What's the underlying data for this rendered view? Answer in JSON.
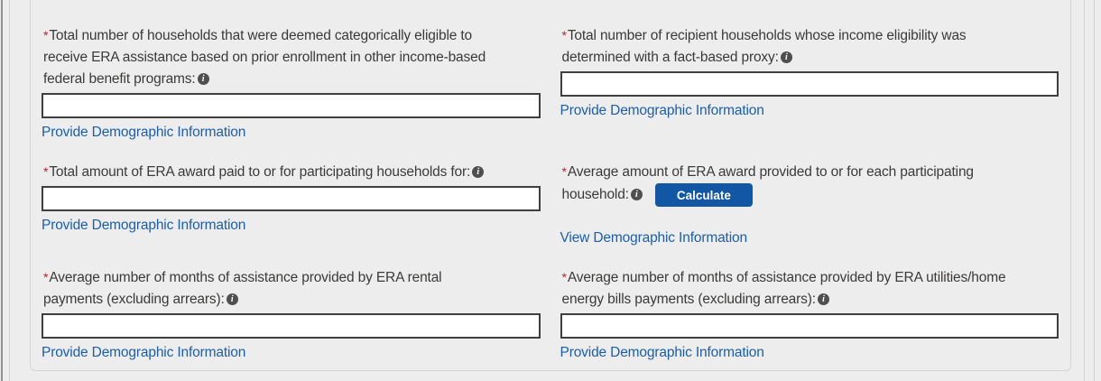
{
  "symbols": {
    "required": "*",
    "info_glyph": "i"
  },
  "colors": {
    "page_background": "#ededed",
    "panel_border": "#d5d5d5",
    "label_text": "#3b3a39",
    "required_asterisk": "#c21e25",
    "link_blue": "#1b5faa",
    "button_blue": "#1257a5",
    "button_text": "#ffffff",
    "input_border": "#3f3f3f",
    "info_icon_background": "#4f4f4f"
  },
  "fields": [
    {
      "name": "categorically-eligible-households",
      "label_lines": [
        "Total number of households that were deemed categorically eligible to",
        "receive ERA assistance based on prior enrollment in other income-based",
        "federal benefit programs:"
      ],
      "value": "",
      "link_label": "Provide Demographic Information"
    },
    {
      "name": "fact-based-proxy-households",
      "label_lines": [
        "Total number of recipient households whose income eligibility was",
        "determined with a fact-based proxy:"
      ],
      "value": "",
      "link_label": "Provide Demographic Information"
    },
    {
      "name": "total-era-award-paid",
      "label_lines": [
        "Total amount of ERA award paid to or for participating households for:"
      ],
      "value": "",
      "link_label": "Provide Demographic Information"
    },
    {
      "name": "average-era-award-per-household",
      "label_lines": [
        "Average amount of ERA award provided to or for each participating",
        "household:"
      ],
      "button_label": "Calculate",
      "link_label": "View Demographic Information"
    },
    {
      "name": "average-months-rental-payments",
      "label_lines": [
        "Average number of months of assistance provided by ERA rental",
        "payments (excluding arrears):"
      ],
      "value": "",
      "link_label": "Provide Demographic Information"
    },
    {
      "name": "average-months-utilities-payments",
      "label_lines": [
        "Average number of months of assistance provided by ERA utilities/home",
        "energy bills payments (excluding arrears):"
      ],
      "value": "",
      "link_label": "Provide Demographic Information"
    }
  ]
}
